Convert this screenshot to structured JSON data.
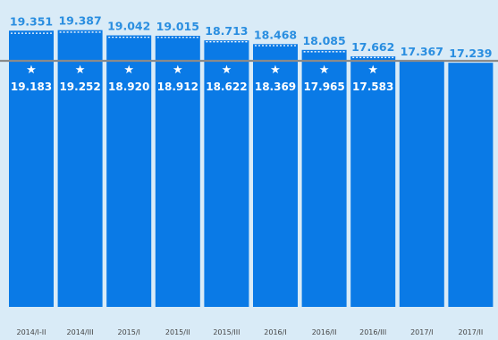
{
  "chart_data": {
    "type": "bar",
    "title": "",
    "xlabel": "",
    "ylabel": "",
    "categories": [
      "2014/I-II",
      "2014/III",
      "2015/I",
      "2015/II",
      "2015/III",
      "2016/I",
      "2016/II",
      "2016/III",
      "2017/I",
      "2017/II"
    ],
    "series": [
      {
        "values": [
          19351,
          19387,
          19042,
          19015,
          18713,
          18468,
          18085,
          17662,
          17367,
          17239
        ],
        "labels": [
          "19.351",
          "19.387",
          "19.042",
          "19.015",
          "18.713",
          "18.468",
          "18.085",
          "17.662",
          "17.367",
          "17.239"
        ]
      },
      {
        "values": [
          19183,
          19252,
          18920,
          18912,
          18622,
          18369,
          17965,
          17583,
          null,
          null
        ],
        "labels": [
          "19.183",
          "19.252",
          "18.920",
          "18.912",
          "18.622",
          "18.369",
          "17.965",
          "17.583",
          "",
          ""
        ],
        "marker": "★"
      }
    ],
    "reference_line": 17367,
    "ylim": [
      0,
      19500
    ],
    "colors": {
      "bar": "#0a7ae6",
      "top_label": "#2a8ee0",
      "reference_line": "#8a8a8a",
      "background": "#d9ebf7"
    }
  }
}
